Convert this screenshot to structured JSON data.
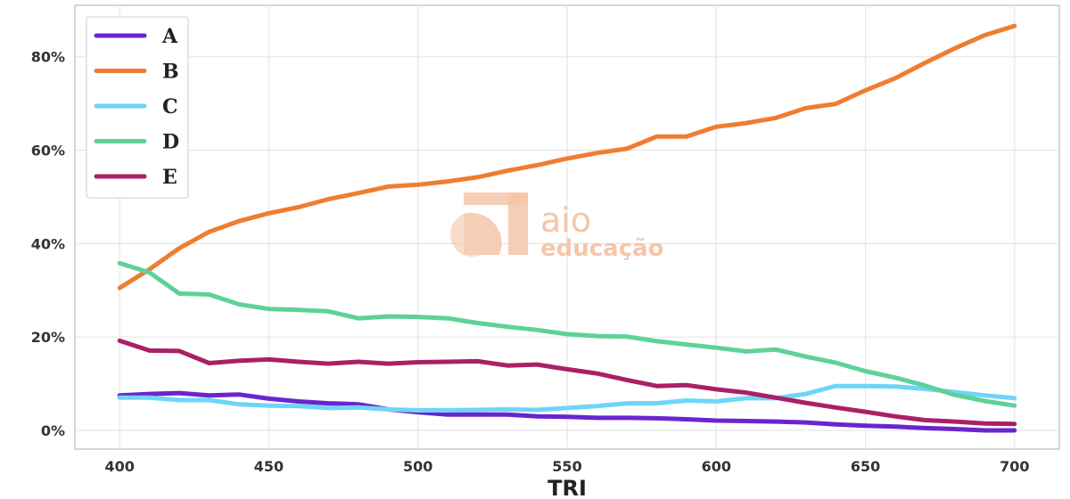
{
  "chart_data": {
    "type": "line",
    "xlabel": "TRI",
    "ylabel": "",
    "x": [
      400,
      410,
      420,
      430,
      440,
      450,
      460,
      470,
      480,
      490,
      500,
      510,
      520,
      530,
      540,
      550,
      560,
      570,
      580,
      590,
      600,
      610,
      620,
      630,
      640,
      650,
      660,
      670,
      680,
      690,
      700
    ],
    "xlim": [
      385,
      715
    ],
    "ylim": [
      -4,
      91
    ],
    "x_ticks": [
      400,
      450,
      500,
      550,
      600,
      650,
      700
    ],
    "y_ticks": [
      0,
      20,
      40,
      60,
      80
    ],
    "x_tick_labels": [
      "400",
      "450",
      "500",
      "550",
      "600",
      "650",
      "700"
    ],
    "y_tick_labels": [
      "0%",
      "20%",
      "40%",
      "60%",
      "80%"
    ],
    "grid": true,
    "legend_position": "top-left",
    "series": [
      {
        "name": "A",
        "color": "#6a24cf",
        "values": [
          7.5,
          7.8,
          8.0,
          7.5,
          7.7,
          6.8,
          6.2,
          5.8,
          5.6,
          4.5,
          3.9,
          3.4,
          3.4,
          3.4,
          3.0,
          2.9,
          2.7,
          2.7,
          2.6,
          2.4,
          2.1,
          2.0,
          1.9,
          1.7,
          1.3,
          1.0,
          0.8,
          0.5,
          0.3,
          0.0,
          0.0
        ]
      },
      {
        "name": "B",
        "color": "#ef7d31",
        "values": [
          30.5,
          34.5,
          39.0,
          42.5,
          44.8,
          46.5,
          47.8,
          49.5,
          50.8,
          52.2,
          52.6,
          53.3,
          54.2,
          55.6,
          56.8,
          58.2,
          59.4,
          60.3,
          62.9,
          62.9,
          65.0,
          65.8,
          66.9,
          69.0,
          69.9,
          72.8,
          75.4,
          78.7,
          81.8,
          84.6,
          86.6
        ]
      },
      {
        "name": "C",
        "color": "#6ed5f8",
        "values": [
          7.0,
          7.0,
          6.5,
          6.5,
          5.6,
          5.3,
          5.2,
          4.8,
          4.9,
          4.5,
          4.3,
          4.3,
          4.4,
          4.5,
          4.4,
          4.8,
          5.2,
          5.8,
          5.8,
          6.4,
          6.2,
          6.9,
          6.9,
          7.8,
          9.5,
          9.5,
          9.4,
          8.9,
          8.2,
          7.5,
          6.9
        ]
      },
      {
        "name": "D",
        "color": "#5fd198",
        "values": [
          35.8,
          33.8,
          29.3,
          29.1,
          27.0,
          26.0,
          25.8,
          25.5,
          24.0,
          24.4,
          24.3,
          24.0,
          23.0,
          22.2,
          21.5,
          20.6,
          20.2,
          20.1,
          19.1,
          18.4,
          17.7,
          16.9,
          17.3,
          15.8,
          14.5,
          12.7,
          11.3,
          9.6,
          7.6,
          6.3,
          5.3
        ]
      },
      {
        "name": "E",
        "color": "#aa2066",
        "values": [
          19.2,
          17.1,
          17.0,
          14.4,
          14.9,
          15.2,
          14.7,
          14.3,
          14.7,
          14.3,
          14.6,
          14.7,
          14.8,
          13.9,
          14.1,
          13.1,
          12.2,
          10.8,
          9.5,
          9.7,
          8.8,
          8.1,
          7.0,
          5.9,
          4.9,
          4.0,
          3.0,
          2.2,
          1.9,
          1.5,
          1.4
        ]
      }
    ]
  },
  "watermark": {
    "line1": "aio",
    "line2": "educação",
    "color": "#f5c6a8"
  }
}
